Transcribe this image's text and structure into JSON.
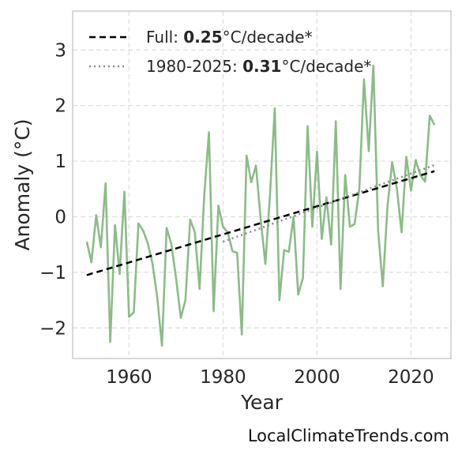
{
  "chart_data": {
    "type": "line",
    "xlabel": "Year",
    "ylabel": "Anomaly (°C)",
    "xlim": [
      1948,
      2028.5
    ],
    "ylim": [
      -2.55,
      3.7
    ],
    "xticks": [
      1960,
      1980,
      2000,
      2020
    ],
    "xtick_labels": [
      "1960",
      "1980",
      "2000",
      "2020"
    ],
    "yticks": [
      -2,
      -1,
      0,
      1,
      2,
      3
    ],
    "ytick_labels": [
      "−2",
      "−1",
      "0",
      "1",
      "2",
      "3"
    ],
    "grid": true,
    "legend_position": "top-left",
    "colors": {
      "series": "#8cbb88",
      "full_trend": "#000000",
      "recent_trend": "#888888",
      "spine": "#cccccc",
      "grid": "#dddddd"
    },
    "series": [
      {
        "x": [
          1951,
          1952,
          1953,
          1954,
          1955,
          1956,
          1957,
          1958,
          1959,
          1960,
          1961,
          1962,
          1963,
          1964,
          1965,
          1966,
          1967,
          1968,
          1969,
          1970,
          1971,
          1972,
          1973,
          1974,
          1975,
          1976,
          1977,
          1978,
          1979,
          1980,
          1981,
          1982,
          1983,
          1984,
          1985,
          1986,
          1987,
          1988,
          1989,
          1990,
          1991,
          1992,
          1993,
          1994,
          1995,
          1996,
          1997,
          1998,
          1999,
          2000,
          2001,
          2002,
          2003,
          2004,
          2005,
          2006,
          2007,
          2008,
          2009,
          2010,
          2011,
          2012,
          2013,
          2014,
          2015,
          2016,
          2017,
          2018,
          2019,
          2020,
          2021,
          2022,
          2023,
          2024,
          2025
        ],
        "y": [
          -0.45,
          -0.82,
          0.03,
          -0.55,
          0.6,
          -2.25,
          -0.15,
          -1.03,
          0.45,
          -1.8,
          -1.72,
          -0.12,
          -0.25,
          -0.48,
          -0.85,
          -1.45,
          -2.32,
          -0.2,
          -0.5,
          -1.1,
          -1.82,
          -1.5,
          -0.05,
          -0.28,
          -1.3,
          0.38,
          1.52,
          -1.7,
          0.2,
          -0.18,
          -0.28,
          -0.62,
          -0.65,
          -2.12,
          1.1,
          0.62,
          0.92,
          -0.03,
          -0.85,
          0.4,
          1.95,
          -1.5,
          -0.6,
          -0.63,
          0.0,
          -1.4,
          -1.1,
          1.63,
          -0.18,
          1.17,
          -0.4,
          0.35,
          -0.5,
          1.72,
          -1.3,
          0.75,
          -0.18,
          -0.13,
          0.5,
          2.47,
          1.18,
          2.72,
          -0.25,
          -1.25,
          0.2,
          0.98,
          0.5,
          -0.28,
          1.08,
          0.47,
          1.02,
          0.75,
          0.63,
          1.82,
          1.65
        ]
      }
    ],
    "trend_lines": [
      {
        "style": "dashed",
        "x": [
          1951,
          2025
        ],
        "y": [
          -1.05,
          0.82
        ]
      },
      {
        "style": "dotted",
        "x": [
          1980,
          2025
        ],
        "y": [
          -0.45,
          0.93
        ]
      }
    ],
    "legend": [
      {
        "prefix": "Full: ",
        "value": "0.25",
        "suffix": "°C/decade*"
      },
      {
        "prefix": "1980-2025: ",
        "value": "0.31",
        "suffix": "°C/decade*"
      }
    ]
  },
  "source": "LocalClimateTrends.com"
}
